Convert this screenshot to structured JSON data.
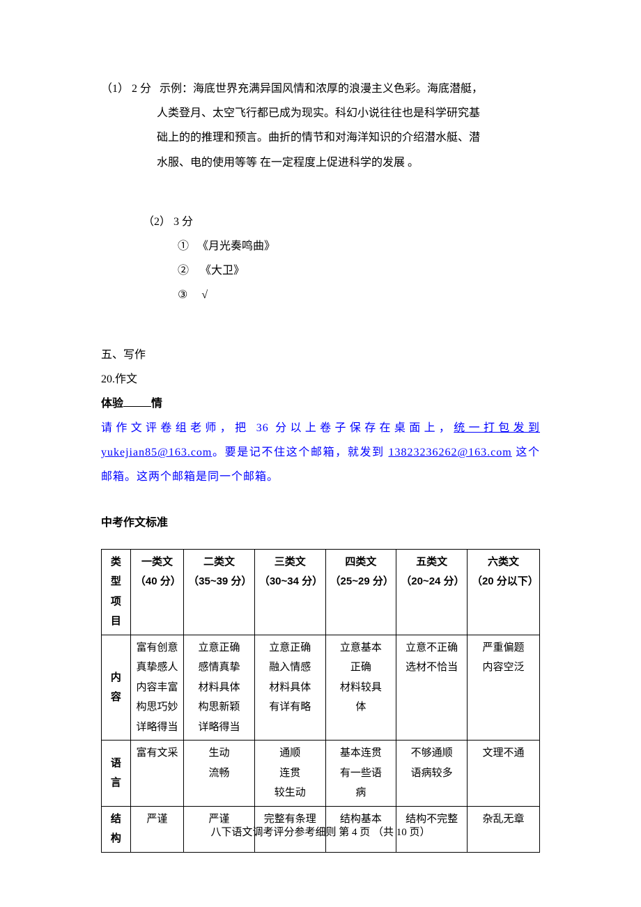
{
  "q1": {
    "label": "（1） 2 分",
    "prefix": "示例：",
    "line1": "海底世界充满异国风情和浓厚的浪漫主义色彩。海底潜艇，",
    "line2": "人类登月、太空飞行都已成为现实。科幻小说往往也是科学研究基",
    "line3": "础上的的推理和预言。曲折的情节和对海洋知识的介绍潜水艇、潜",
    "line4": "水服、电的使用等等 在一定程度上促进科学的发展 。"
  },
  "q2": {
    "label": "（2） 3 分",
    "a1_num": "①",
    "a1": "《月光奏鸣曲》",
    "a2_num": "②",
    "a2": "《大卫》",
    "a3_num": "③",
    "a3": "√"
  },
  "section5": {
    "heading": "五、写作",
    "item": "20.作文",
    "prompt_prefix": "体验",
    "prompt_suffix": "情"
  },
  "notice": {
    "t1": "请作文评卷组老师，把 36 分以上卷子保存在桌面上，",
    "link1_text": "统一打包发到",
    "link1_url": "yukejian85@163.com",
    "t2": "。要是记不住这个邮箱，就发到 ",
    "link2": "13823236262@163.com",
    "t3": " 这个邮箱。这两个邮箱是同一个邮箱。"
  },
  "rubric": {
    "heading": "中考作文标准",
    "headers": {
      "type_label": "类型",
      "item_label": "项目",
      "c1a": "一类文",
      "c1b": "（40 分）",
      "c2a": "二类文",
      "c2b": "（35~39 分）",
      "c3a": "三类文",
      "c3b": "（30~34 分）",
      "c4a": "四类文",
      "c4b": "（25~29 分）",
      "c5a": "五类文",
      "c5b": "（20~24 分）",
      "c6a": "六类文",
      "c6b": "（20 分以下）"
    },
    "rows": {
      "content_label": "内容",
      "content": {
        "c1": "富有创意\n真挚感人\n内容丰富\n构思巧妙\n详略得当",
        "c2": "立意正确\n感情真挚\n材料具体\n构思新颖\n详略得当",
        "c3": "立意正确\n融入情感\n材料具体\n有详有略",
        "c4": "立意基本\n正确\n材料较具\n体",
        "c5": "立意不正确\n选材不恰当",
        "c6": "严重偏题\n内容空泛"
      },
      "lang_label": "语言",
      "lang": {
        "c1": "富有文采",
        "c2": "生动\n流畅",
        "c3": "通顺\n连贯\n较生动",
        "c4": "基本连贯\n有一些语\n病",
        "c5": "不够通顺\n语病较多",
        "c6": "文理不通"
      },
      "struct_label": "结构",
      "struct": {
        "c1": "严谨",
        "c2": "严谨",
        "c3": "完整有条理",
        "c4": "结构基本",
        "c5": "结构不完整",
        "c6": "杂乱无章"
      }
    }
  },
  "footer": {
    "text_a": "八下语文调考评分参考细则 第 ",
    "page": "4",
    "text_b": " 页 （共 ",
    "total": "10",
    "text_c": " 页）"
  }
}
